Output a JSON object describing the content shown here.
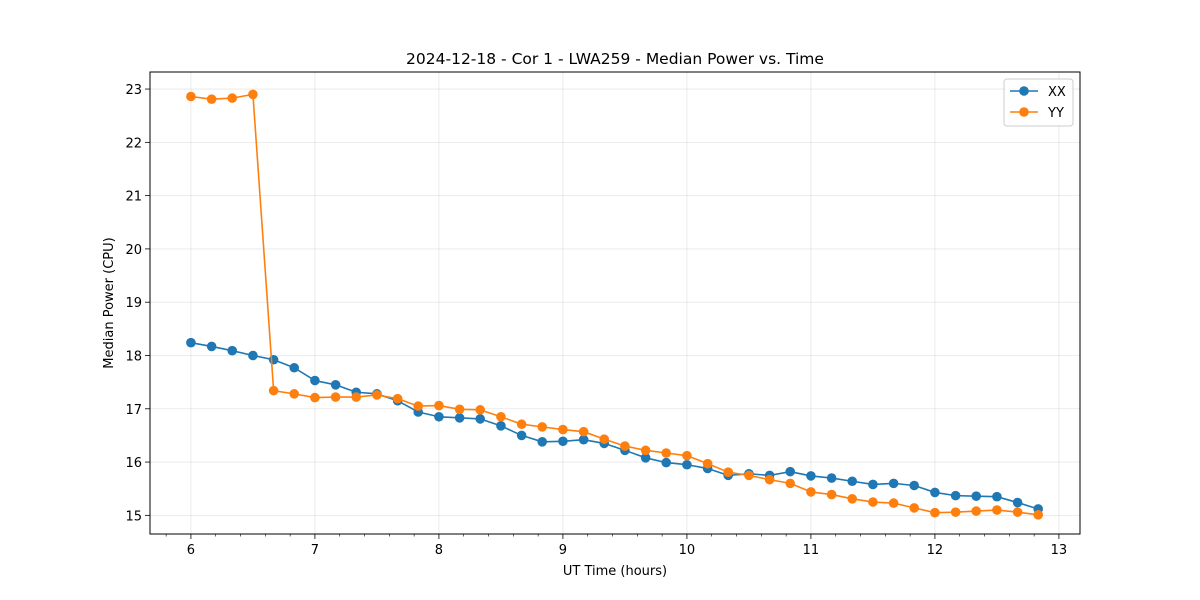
{
  "chart_data": {
    "type": "line",
    "title": "2024-12-18 - Cor 1 - LWA259 - Median Power vs. Time",
    "xlabel": "UT Time (hours)",
    "ylabel": "Median Power (CPU)",
    "xlim": [
      5.67,
      13.17
    ],
    "ylim": [
      14.65,
      23.32
    ],
    "xticks": [
      6,
      7,
      8,
      9,
      10,
      11,
      12,
      13
    ],
    "yticks": [
      15,
      16,
      17,
      18,
      19,
      20,
      21,
      22,
      23
    ],
    "grid": true,
    "legend_position": "top-right",
    "x": [
      6.0,
      6.167,
      6.333,
      6.5,
      6.667,
      6.833,
      7.0,
      7.167,
      7.333,
      7.5,
      7.667,
      7.833,
      8.0,
      8.167,
      8.333,
      8.5,
      8.667,
      8.833,
      9.0,
      9.167,
      9.333,
      9.5,
      9.667,
      9.833,
      10.0,
      10.167,
      10.333,
      10.5,
      10.667,
      10.833,
      11.0,
      11.167,
      11.333,
      11.5,
      11.667,
      11.833,
      12.0,
      12.167,
      12.333,
      12.5,
      12.667,
      12.833
    ],
    "series": [
      {
        "name": "XX",
        "color": "#1f77b4",
        "values": [
          18.24,
          18.17,
          18.09,
          18.0,
          17.92,
          17.77,
          17.53,
          17.45,
          17.31,
          17.28,
          17.15,
          16.94,
          16.85,
          16.83,
          16.81,
          16.68,
          16.5,
          16.38,
          16.39,
          16.42,
          16.35,
          16.22,
          16.08,
          15.99,
          15.95,
          15.88,
          15.75,
          15.78,
          15.75,
          15.82,
          15.74,
          15.7,
          15.64,
          15.58,
          15.6,
          15.56,
          15.43,
          15.37,
          15.36,
          15.35,
          15.24,
          15.12
        ]
      },
      {
        "name": "YY",
        "color": "#ff7f0e",
        "values": [
          22.86,
          22.81,
          22.83,
          22.9,
          17.34,
          17.28,
          17.21,
          17.22,
          17.22,
          17.26,
          17.19,
          17.05,
          17.06,
          16.99,
          16.98,
          16.85,
          16.71,
          16.66,
          16.61,
          16.57,
          16.43,
          16.3,
          16.22,
          16.17,
          16.12,
          15.97,
          15.81,
          15.75,
          15.67,
          15.6,
          15.44,
          15.39,
          15.31,
          15.25,
          15.23,
          15.14,
          15.05,
          15.06,
          15.08,
          15.1,
          15.06,
          15.01
        ]
      }
    ]
  }
}
